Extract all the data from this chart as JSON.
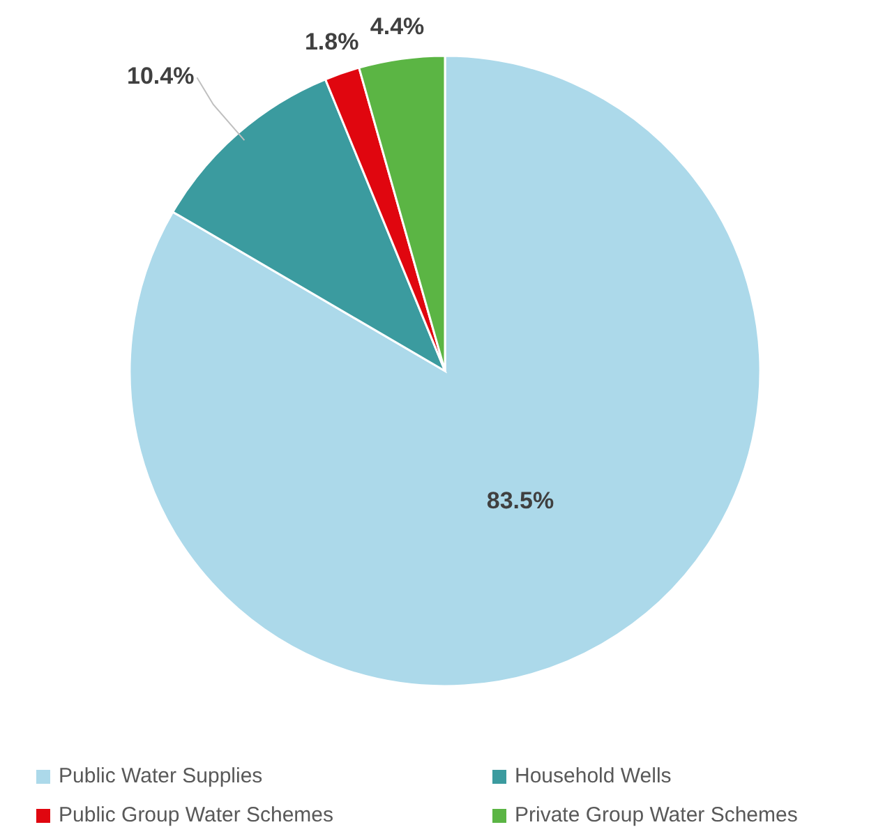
{
  "chart_data": {
    "type": "pie",
    "categories": [
      "Public Water Supplies",
      "Household Wells",
      "Public Group Water Schemes",
      "Private Group Water Schemes"
    ],
    "values": [
      83.5,
      10.4,
      1.8,
      4.4
    ],
    "colors": [
      "#acd9ea",
      "#3b9b9f",
      "#e0060f",
      "#5bb544"
    ],
    "value_labels": [
      "83.5%",
      "10.4%",
      "1.8%",
      "4.4%"
    ],
    "legend": "bottom"
  }
}
